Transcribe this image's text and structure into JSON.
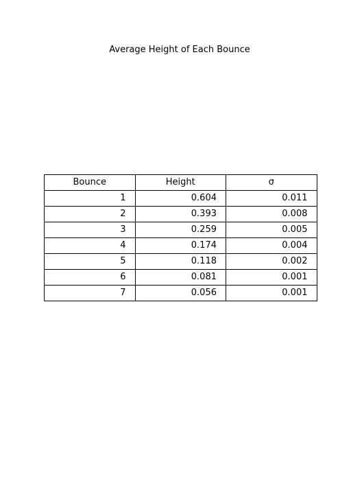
{
  "chart_data": {
    "type": "table",
    "title": "Average Height of Each Bounce",
    "columns": [
      "Bounce",
      "Height",
      "σ"
    ],
    "rows": [
      [
        "1",
        "0.604",
        "0.011"
      ],
      [
        "2",
        "0.393",
        "0.008"
      ],
      [
        "3",
        "0.259",
        "0.005"
      ],
      [
        "4",
        "0.174",
        "0.004"
      ],
      [
        "5",
        "0.118",
        "0.002"
      ],
      [
        "6",
        "0.081",
        "0.001"
      ],
      [
        "7",
        "0.056",
        "0.001"
      ]
    ]
  }
}
